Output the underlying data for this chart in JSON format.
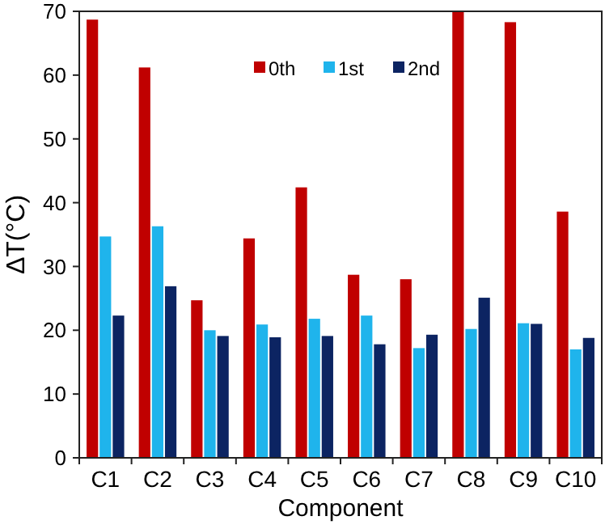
{
  "chart_data": {
    "type": "bar",
    "xlabel": "Component",
    "ylabel": "ΔT(°C)",
    "categories": [
      "C1",
      "C2",
      "C3",
      "C4",
      "C5",
      "C6",
      "C7",
      "C8",
      "C9",
      "C10"
    ],
    "series": [
      {
        "name": "0th",
        "color": "#c00000",
        "values": [
          68.7,
          61.2,
          24.7,
          34.4,
          42.4,
          28.7,
          28,
          70,
          68.3,
          38.6
        ]
      },
      {
        "name": "1st",
        "color": "#1fb4ec",
        "values": [
          34.7,
          36.3,
          20,
          20.9,
          21.8,
          22.3,
          17.2,
          20.2,
          21.1,
          17
        ]
      },
      {
        "name": "2nd",
        "color": "#0c2462",
        "values": [
          22.3,
          26.9,
          19.1,
          18.9,
          19.1,
          17.8,
          19.3,
          25.1,
          21,
          18.8
        ]
      }
    ],
    "ylim": [
      0,
      70
    ],
    "yticks": [
      0,
      10,
      20,
      30,
      40,
      50,
      60,
      70
    ],
    "grid": false,
    "legend": "top"
  }
}
